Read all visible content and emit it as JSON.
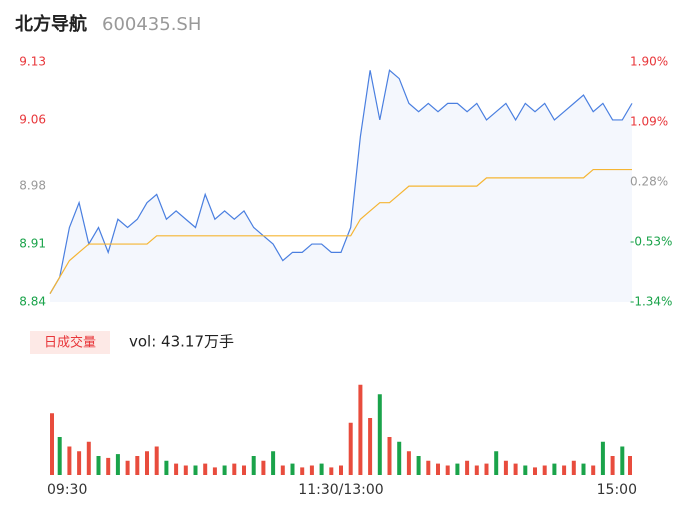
{
  "chart_data": [
    {
      "type": "line",
      "title": "北方导航",
      "subtitle": "600435.SH",
      "x": [
        0,
        4,
        8,
        12,
        16,
        20,
        24,
        28,
        32,
        36,
        40,
        44,
        48,
        52,
        56,
        60,
        64,
        68,
        72,
        76,
        80,
        84,
        88,
        92,
        96,
        100,
        104,
        108,
        112,
        116,
        120,
        124,
        128,
        132,
        136,
        140,
        144,
        148,
        152,
        156,
        160,
        164,
        168,
        172,
        176,
        180,
        184,
        188,
        192,
        196,
        200,
        204,
        208,
        212,
        216,
        220,
        224,
        228,
        232,
        236,
        240
      ],
      "xlim": [
        0,
        240
      ],
      "series": [
        {
          "name": "price",
          "color": "#4a7fe0",
          "values": [
            8.85,
            8.87,
            8.93,
            8.96,
            8.91,
            8.93,
            8.9,
            8.94,
            8.93,
            8.94,
            8.96,
            8.97,
            8.94,
            8.95,
            8.94,
            8.93,
            8.97,
            8.94,
            8.95,
            8.94,
            8.95,
            8.93,
            8.92,
            8.91,
            8.89,
            8.9,
            8.9,
            8.91,
            8.91,
            8.9,
            8.9,
            8.93,
            9.04,
            9.12,
            9.06,
            9.12,
            9.11,
            9.08,
            9.07,
            9.08,
            9.07,
            9.08,
            9.08,
            9.07,
            9.08,
            9.06,
            9.07,
            9.08,
            9.06,
            9.08,
            9.07,
            9.08,
            9.06,
            9.07,
            9.08,
            9.09,
            9.07,
            9.08,
            9.06,
            9.06,
            9.08
          ]
        },
        {
          "name": "average",
          "color": "#f5b533",
          "values": [
            8.85,
            8.87,
            8.89,
            8.9,
            8.91,
            8.91,
            8.91,
            8.91,
            8.91,
            8.91,
            8.91,
            8.92,
            8.92,
            8.92,
            8.92,
            8.92,
            8.92,
            8.92,
            8.92,
            8.92,
            8.92,
            8.92,
            8.92,
            8.92,
            8.92,
            8.92,
            8.92,
            8.92,
            8.92,
            8.92,
            8.92,
            8.92,
            8.94,
            8.95,
            8.96,
            8.96,
            8.97,
            8.98,
            8.98,
            8.98,
            8.98,
            8.98,
            8.98,
            8.98,
            8.98,
            8.99,
            8.99,
            8.99,
            8.99,
            8.99,
            8.99,
            8.99,
            8.99,
            8.99,
            8.99,
            8.99,
            9.0,
            9.0,
            9.0,
            9.0,
            9.0
          ]
        }
      ],
      "ylim": [
        8.84,
        9.13
      ],
      "yticks": [
        9.13,
        9.06,
        8.98,
        8.91,
        8.84
      ],
      "y2lim": [
        -1.34,
        1.9
      ],
      "y2ticks": [
        {
          "value": 1.9,
          "label": "1.90%"
        },
        {
          "value": 1.09,
          "label": "1.09%"
        },
        {
          "value": 0.28,
          "label": "0.28%"
        },
        {
          "value": -0.53,
          "label": "-0.53%"
        },
        {
          "value": -1.34,
          "label": "-1.34%"
        }
      ],
      "up_color": "#e8363a",
      "down_color": "#1aa34a",
      "flat_color": "#999999",
      "area_color": "#f4f7fd",
      "grid": false
    },
    {
      "type": "bar",
      "title": "日成交量",
      "subtitle": "vol: 43.17万手",
      "x": [
        0,
        4,
        8,
        12,
        16,
        20,
        24,
        28,
        32,
        36,
        40,
        44,
        48,
        52,
        56,
        60,
        64,
        68,
        72,
        76,
        80,
        84,
        88,
        92,
        96,
        100,
        104,
        108,
        112,
        116,
        120,
        124,
        128,
        132,
        136,
        140,
        144,
        148,
        152,
        156,
        160,
        164,
        168,
        172,
        176,
        180,
        184,
        188,
        192,
        196,
        200,
        204,
        208,
        212,
        216,
        220,
        224,
        228,
        232,
        236,
        240
      ],
      "values": [
        65,
        40,
        30,
        25,
        35,
        20,
        18,
        22,
        15,
        20,
        25,
        30,
        15,
        12,
        10,
        10,
        12,
        8,
        10,
        12,
        10,
        20,
        15,
        25,
        10,
        12,
        8,
        10,
        12,
        8,
        10,
        55,
        95,
        60,
        85,
        40,
        35,
        25,
        20,
        15,
        12,
        10,
        12,
        15,
        10,
        12,
        25,
        15,
        12,
        10,
        8,
        10,
        12,
        10,
        15,
        12,
        10,
        35,
        20,
        30,
        20
      ],
      "colors": [
        "#e84c3d",
        "#1aa34a",
        "#e84c3d",
        "#e84c3d",
        "#e84c3d",
        "#1aa34a",
        "#e84c3d",
        "#1aa34a",
        "#e84c3d",
        "#e84c3d",
        "#e84c3d",
        "#e84c3d",
        "#1aa34a",
        "#e84c3d",
        "#e84c3d",
        "#1aa34a",
        "#e84c3d",
        "#e84c3d",
        "#1aa34a",
        "#e84c3d",
        "#e84c3d",
        "#1aa34a",
        "#e84c3d",
        "#1aa34a",
        "#e84c3d",
        "#1aa34a",
        "#e84c3d",
        "#e84c3d",
        "#1aa34a",
        "#e84c3d",
        "#e84c3d",
        "#e84c3d",
        "#e84c3d",
        "#e84c3d",
        "#1aa34a",
        "#e84c3d",
        "#1aa34a",
        "#e84c3d",
        "#1aa34a",
        "#e84c3d",
        "#e84c3d",
        "#e84c3d",
        "#1aa34a",
        "#e84c3d",
        "#e84c3d",
        "#e84c3d",
        "#1aa34a",
        "#e84c3d",
        "#e84c3d",
        "#1aa34a",
        "#e84c3d",
        "#e84c3d",
        "#1aa34a",
        "#e84c3d",
        "#e84c3d",
        "#1aa34a",
        "#e84c3d",
        "#1aa34a",
        "#e84c3d",
        "#1aa34a",
        "#e84c3d"
      ],
      "ylim": [
        0,
        100
      ],
      "xlim": [
        0,
        240
      ],
      "xticks": [
        {
          "value": 0,
          "label": "09:30"
        },
        {
          "value": 120,
          "label": "11:30/13:00"
        },
        {
          "value": 240,
          "label": "15:00"
        }
      ]
    }
  ]
}
